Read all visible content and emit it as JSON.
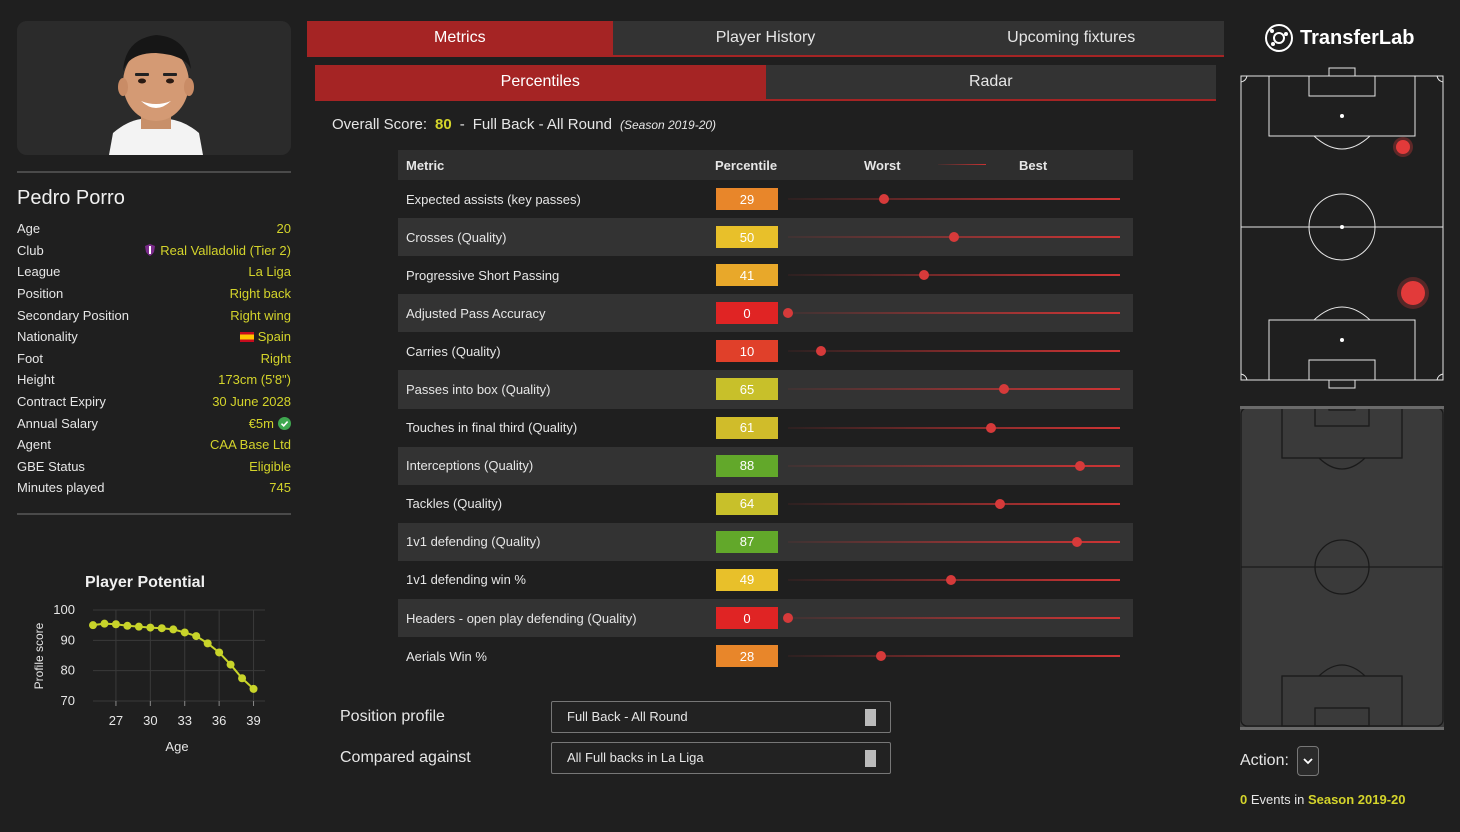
{
  "player": {
    "name": "Pedro Porro",
    "info": [
      {
        "key": "Age",
        "value": "20"
      },
      {
        "key": "Club",
        "value": "Real Valladolid (Tier 2)",
        "icon": "club-crest-icon"
      },
      {
        "key": "League",
        "value": "La Liga"
      },
      {
        "key": "Position",
        "value": "Right back"
      },
      {
        "key": "Secondary Position",
        "value": "Right wing"
      },
      {
        "key": "Nationality",
        "value": "Spain",
        "icon": "spain-flag-icon"
      },
      {
        "key": "Foot",
        "value": "Right"
      },
      {
        "key": "Height",
        "value": "173cm (5'8\")"
      },
      {
        "key": "Contract Expiry",
        "value": "30 June 2028"
      },
      {
        "key": "Annual Salary",
        "value": "€5m",
        "icon": "verified-check-icon"
      },
      {
        "key": "Agent",
        "value": "CAA Base Ltd"
      },
      {
        "key": "GBE Status",
        "value": "Eligible"
      },
      {
        "key": "Minutes played",
        "value": "745"
      }
    ]
  },
  "potential_chart": {
    "chart_data": {
      "type": "line",
      "title": "Player Potential",
      "xlabel": "Age",
      "ylabel": "Profile score",
      "x_ticks": [
        "27",
        "30",
        "33",
        "36",
        "39"
      ],
      "y_ticks": [
        "100",
        "90",
        "80",
        "70"
      ],
      "xlim": [
        25,
        40
      ],
      "ylim": [
        70,
        100
      ],
      "x": [
        25,
        26,
        27,
        28,
        29,
        30,
        31,
        32,
        33,
        34,
        35,
        36,
        37,
        38,
        39
      ],
      "values": [
        95,
        95.5,
        95.3,
        94.8,
        94.5,
        94.2,
        94,
        93.6,
        92.6,
        91.4,
        89,
        86,
        82,
        77.5,
        74
      ],
      "color": "#c8d42a",
      "grid": true
    }
  },
  "tabs": [
    "Metrics",
    "Player History",
    "Upcoming fixtures"
  ],
  "subtabs": [
    "Percentiles",
    "Radar"
  ],
  "overall": {
    "label": "Overall Score:",
    "score": "80",
    "sep": "-",
    "profile": "Full Back - All Round",
    "season": "(Season 2019-20)"
  },
  "metrics_table": {
    "headers": {
      "metric": "Metric",
      "percentile": "Percentile",
      "worst": "Worst",
      "best": "Best"
    },
    "rows": [
      {
        "metric": "Expected assists (key passes)",
        "percentile": 29,
        "color": "#e8862a"
      },
      {
        "metric": "Crosses (Quality)",
        "percentile": 50,
        "color": "#e8c02a"
      },
      {
        "metric": "Progressive Short Passing",
        "percentile": 41,
        "color": "#e8a82a"
      },
      {
        "metric": "Adjusted Pass Accuracy",
        "percentile": 0,
        "color": "#e02424"
      },
      {
        "metric": "Carries (Quality)",
        "percentile": 10,
        "color": "#e0402a"
      },
      {
        "metric": "Passes into box (Quality)",
        "percentile": 65,
        "color": "#c8c02a"
      },
      {
        "metric": "Touches in final third (Quality)",
        "percentile": 61,
        "color": "#d0bc2a"
      },
      {
        "metric": "Interceptions (Quality)",
        "percentile": 88,
        "color": "#62a82a"
      },
      {
        "metric": "Tackles (Quality)",
        "percentile": 64,
        "color": "#c8c02a"
      },
      {
        "metric": "1v1 defending (Quality)",
        "percentile": 87,
        "color": "#62a82a"
      },
      {
        "metric": "1v1 defending win %",
        "percentile": 49,
        "color": "#e8c02a"
      },
      {
        "metric": "Headers - open play defending (Quality)",
        "percentile": 0,
        "color": "#e02424"
      },
      {
        "metric": "Aerials Win %",
        "percentile": 28,
        "color": "#e8862a"
      }
    ]
  },
  "filters": {
    "position_profile_label": "Position profile",
    "position_profile_value": "Full Back - All Round",
    "compared_against_label": "Compared against",
    "compared_against_value": "All Full backs in La Liga"
  },
  "brand": {
    "name": "TransferLab"
  },
  "action": {
    "label": "Action:"
  },
  "events": {
    "count": "0",
    "text": " Events in ",
    "season": "Season 2019-20"
  },
  "colors": {
    "accent": "#a52424",
    "value_yellow": "#d4d42b"
  }
}
